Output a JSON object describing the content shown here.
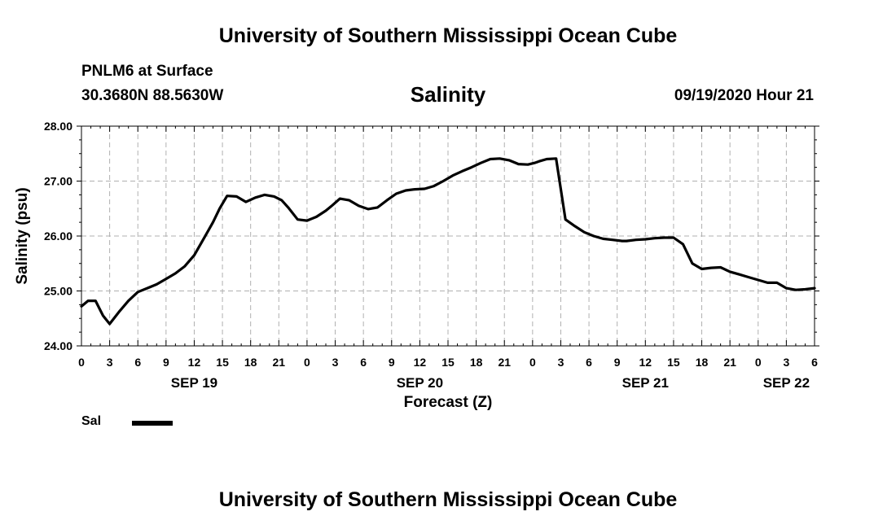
{
  "header": {
    "title": "University of Southern Mississippi Ocean Cube",
    "station": "PNLM6 at Surface",
    "coordinates": "30.3680N 88.5630W",
    "datetime": "09/19/2020 Hour 21"
  },
  "footer": {
    "title": "University of Southern Mississippi Ocean Cube"
  },
  "chart_data": {
    "type": "line",
    "title": "Salinity",
    "xlabel": "Forecast (Z)",
    "ylabel": "Salinity (psu)",
    "ylim": [
      24.0,
      28.0
    ],
    "y_ticks": [
      "24.00",
      "25.00",
      "26.00",
      "27.00",
      "28.00"
    ],
    "y_tick_values": [
      24,
      25,
      26,
      27,
      28
    ],
    "xlim_hours": [
      0,
      78
    ],
    "x_tick_hours": [
      0,
      3,
      6,
      9,
      12,
      15,
      18,
      21,
      24,
      27,
      30,
      33,
      36,
      39,
      42,
      45,
      48,
      51,
      54,
      57,
      60,
      63,
      66,
      69,
      72,
      75,
      78
    ],
    "x_tick_labels": [
      "0",
      "3",
      "6",
      "9",
      "12",
      "15",
      "18",
      "21",
      "0",
      "3",
      "6",
      "9",
      "12",
      "15",
      "18",
      "21",
      "0",
      "3",
      "6",
      "9",
      "12",
      "15",
      "18",
      "21",
      "0",
      "3",
      "6"
    ],
    "x_day_hours": [
      12,
      36,
      60,
      75
    ],
    "x_day_labels": [
      "SEP 19",
      "SEP 20",
      "SEP 21",
      "SEP 22"
    ],
    "grid": true,
    "legend_position": "bottom-left",
    "series": [
      {
        "name": "Sal",
        "x": [
          0,
          0.7,
          1.5,
          2.3,
          3,
          4,
          5,
          6,
          7,
          8,
          9,
          10,
          11,
          12,
          13,
          14,
          14.7,
          15.5,
          16.5,
          17.5,
          18.5,
          19.5,
          20.5,
          21.3,
          22,
          23,
          24,
          25,
          26,
          26.7,
          27.5,
          28.5,
          29.5,
          30.5,
          31.5,
          32.5,
          33.5,
          34.5,
          35.5,
          36.5,
          37.5,
          38.5,
          39.5,
          40.5,
          41.5,
          42.5,
          43.5,
          44.5,
          45.5,
          46.5,
          47.5,
          48.2,
          48.7,
          49.5,
          50.5,
          51.5,
          52.5,
          53.5,
          54.5,
          55.5,
          56.5,
          57.5,
          58,
          59,
          60,
          61,
          62,
          63,
          64,
          65,
          66,
          67,
          68,
          69,
          70,
          71,
          72,
          73,
          74,
          75,
          76,
          77,
          78
        ],
        "values": [
          24.72,
          24.82,
          24.82,
          24.55,
          24.4,
          24.62,
          24.82,
          24.98,
          25.05,
          25.12,
          25.22,
          25.32,
          25.45,
          25.65,
          25.95,
          26.25,
          26.5,
          26.73,
          26.72,
          26.62,
          26.7,
          26.75,
          26.72,
          26.65,
          26.52,
          26.3,
          26.28,
          26.35,
          26.46,
          26.56,
          26.68,
          26.65,
          26.55,
          26.49,
          26.52,
          26.65,
          26.77,
          26.83,
          26.85,
          26.86,
          26.91,
          27.0,
          27.1,
          27.18,
          27.25,
          27.33,
          27.4,
          27.41,
          27.38,
          27.31,
          27.3,
          27.33,
          27.36,
          27.4,
          27.41,
          26.3,
          26.18,
          26.07,
          26.0,
          25.95,
          25.93,
          25.91,
          25.91,
          25.93,
          25.94,
          25.96,
          25.97,
          25.97,
          25.85,
          25.5,
          25.4,
          25.42,
          25.43,
          25.35,
          25.3,
          25.25,
          25.2,
          25.15,
          25.15,
          25.05,
          25.02,
          25.03,
          25.05
        ]
      }
    ]
  }
}
